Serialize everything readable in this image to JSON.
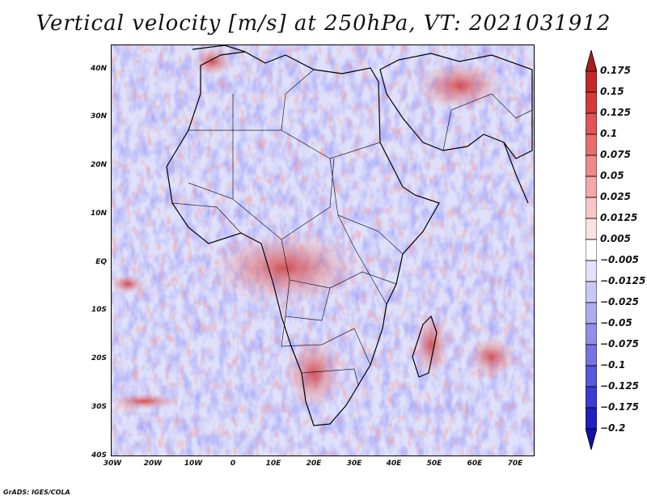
{
  "title": "Vertical velocity [m/s] at 250hPa, VT: 2021031912",
  "footer": "GrADS: IGES/COLA",
  "map": {
    "lat_labels": [
      "40N",
      "30N",
      "20N",
      "10N",
      "EQ",
      "10S",
      "20S",
      "30S",
      "40S"
    ],
    "lon_labels": [
      "30W",
      "20W",
      "10W",
      "0",
      "10E",
      "20E",
      "30E",
      "40E",
      "50E",
      "60E",
      "70E"
    ],
    "lon_range": [
      -30,
      75
    ],
    "lat_range": [
      -40,
      45
    ],
    "field": "Vertical velocity",
    "units": "m/s",
    "level": "250hPa",
    "valid_time": "2021031912"
  },
  "colorbar": {
    "labels": [
      "0.175",
      "0.15",
      "0.125",
      "0.1",
      "0.075",
      "0.05",
      "0.025",
      "0.0125",
      "0.005",
      "−0.005",
      "−0.0125",
      "−0.025",
      "−0.05",
      "−0.075",
      "−0.1",
      "−0.125",
      "−0.175",
      "−0.2"
    ],
    "colors": [
      "#a51f1f",
      "#c22828",
      "#d43a3a",
      "#e05555",
      "#e86e6e",
      "#ef8a8a",
      "#f4a8a8",
      "#f8c6c6",
      "#fbe2e2",
      "#ffffff",
      "#e2e2fb",
      "#c8c8f5",
      "#acacf0",
      "#9090ea",
      "#7474e2",
      "#5858da",
      "#3c3cd0",
      "#2020c0",
      "#1212a8"
    ]
  }
}
